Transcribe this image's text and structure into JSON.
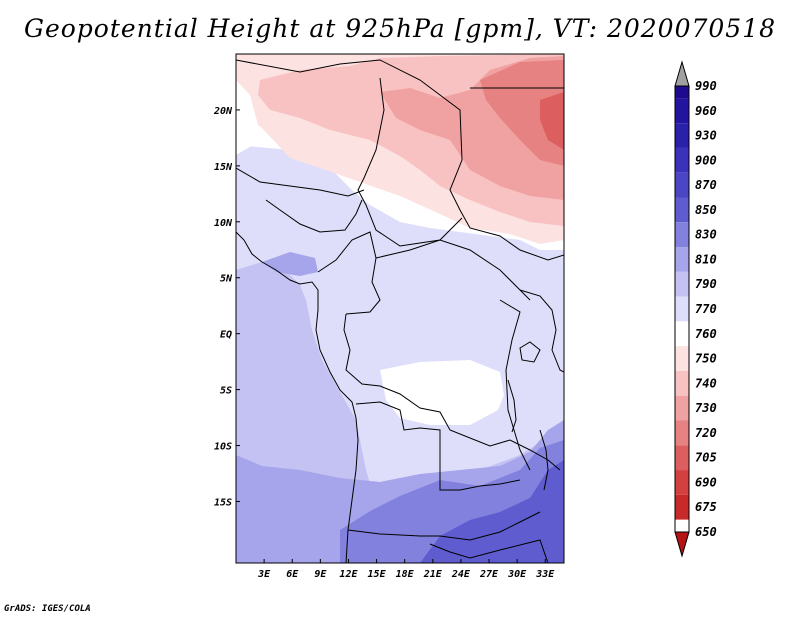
{
  "title": "Geopotential Height at 925hPa [gpm], VT: 2020070518",
  "credit": "GrADS: IGES/COLA",
  "map": {
    "projection": "lat-lon",
    "lon_range": [
      0,
      35.0
    ],
    "lat_range": [
      -20.5,
      25.0
    ],
    "lat_ticks": [
      {
        "value": 20,
        "label": "20N"
      },
      {
        "value": 15,
        "label": "15N"
      },
      {
        "value": 10,
        "label": "10N"
      },
      {
        "value": 5,
        "label": "5N"
      },
      {
        "value": 0,
        "label": "EQ"
      },
      {
        "value": -5,
        "label": "5S"
      },
      {
        "value": -10,
        "label": "10S"
      },
      {
        "value": -15,
        "label": "15S"
      }
    ],
    "lon_ticks": [
      {
        "value": 3,
        "label": "3E"
      },
      {
        "value": 6,
        "label": "6E"
      },
      {
        "value": 9,
        "label": "9E"
      },
      {
        "value": 12,
        "label": "12E"
      },
      {
        "value": 15,
        "label": "15E"
      },
      {
        "value": 18,
        "label": "18E"
      },
      {
        "value": 21,
        "label": "21E"
      },
      {
        "value": 24,
        "label": "24E"
      },
      {
        "value": 27,
        "label": "27E"
      },
      {
        "value": 30,
        "label": "30E"
      },
      {
        "value": 33,
        "label": "33E"
      }
    ]
  },
  "colorbar": {
    "top_arrow_color": "#a0a0a0",
    "bottom_arrow_color": "#b41414",
    "levels": [
      {
        "label": "990",
        "color": "#1e0a8c"
      },
      {
        "label": "960",
        "color": "#22149e"
      },
      {
        "label": "930",
        "color": "#2a20aa"
      },
      {
        "label": "900",
        "color": "#3a32b8"
      },
      {
        "label": "870",
        "color": "#4a46c4"
      },
      {
        "label": "850",
        "color": "#5e5ccf"
      },
      {
        "label": "830",
        "color": "#8282de"
      },
      {
        "label": "810",
        "color": "#a6a4ea"
      },
      {
        "label": "790",
        "color": "#c4c2f2"
      },
      {
        "label": "770",
        "color": "#dedefa"
      },
      {
        "label": "760",
        "color": "#ffffff"
      },
      {
        "label": "750",
        "color": "#fde2e2"
      },
      {
        "label": "740",
        "color": "#f8c2c2"
      },
      {
        "label": "730",
        "color": "#f0a2a2"
      },
      {
        "label": "720",
        "color": "#e68282"
      },
      {
        "label": "705",
        "color": "#dc5e5e"
      },
      {
        "label": "690",
        "color": "#d24040"
      },
      {
        "label": "675",
        "color": "#c82a2a"
      },
      {
        "label": "650",
        "color": "#b41414"
      }
    ]
  }
}
